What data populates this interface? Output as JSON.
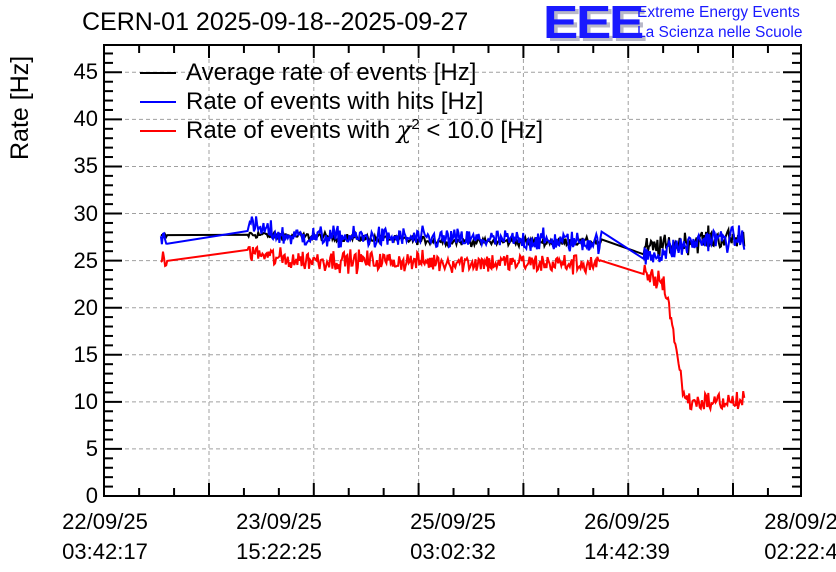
{
  "chart_data": {
    "type": "line",
    "title": "CERN-01 2025-09-18--2025-09-27",
    "xlabel": "",
    "ylabel": "Rate [Hz]",
    "ylim": [
      0,
      47.9
    ],
    "yticks": [
      0,
      5,
      10,
      15,
      20,
      25,
      30,
      35,
      40,
      45
    ],
    "ytick_labels": [
      "0",
      "5",
      "10",
      "15",
      "20",
      "25",
      "30",
      "35",
      "40",
      "45"
    ],
    "xtick_labels": [
      {
        "date": "22/09/25",
        "time": "03:42:17"
      },
      {
        "date": "23/09/25",
        "time": "15:22:25"
      },
      {
        "date": "25/09/25",
        "time": "03:02:32"
      },
      {
        "date": "26/09/25",
        "time": "14:42:39"
      },
      {
        "date": "28/09/2",
        "time": "02:22:4"
      }
    ],
    "x_units": "hours since 22/09/25 03:42:17",
    "xlim": [
      0,
      144.67
    ],
    "grid": true,
    "legend_position": "top-left",
    "series": [
      {
        "name": "Average rate of events [Hz]",
        "color": "#000000",
        "segments": [
          {
            "t_start": 11.8,
            "t_end": 13.2,
            "mean": 27.6,
            "noise": 0.2
          },
          {
            "t_start": 29.8,
            "t_end": 103.3,
            "mean": 27.8,
            "noise": 0.3,
            "end_mean": 27.0
          },
          {
            "t_start": 112.0,
            "t_end": 133.1,
            "mean": 26.2,
            "noise": 0.8,
            "end_mean": 27.3
          }
        ]
      },
      {
        "name": "Rate of events with hits [Hz]",
        "color": "#0000ff",
        "segments": [
          {
            "t_start": 11.8,
            "t_end": 13.2,
            "mean": 27.6,
            "noise": 0.8
          },
          {
            "t_start": 29.8,
            "t_end": 103.3,
            "mean": 27.6,
            "noise": 0.8,
            "start_mean": 28.8,
            "end_mean": 27.0
          },
          {
            "t_start": 112.0,
            "t_end": 133.1,
            "mean": 25.3,
            "noise": 0.9,
            "end_mean": 27.3
          }
        ]
      },
      {
        "name": "Rate of events with χ² < 10.0 [Hz]",
        "color": "#ff0000",
        "segments": [
          {
            "t_start": 11.8,
            "t_end": 13.2,
            "mean": 24.9,
            "noise": 0.8
          },
          {
            "t_start": 29.8,
            "t_end": 103.3,
            "mean": 25.1,
            "noise": 0.8,
            "start_mean": 26.0,
            "end_mean": 24.6
          },
          {
            "t_start": 112.0,
            "t_end": 133.1,
            "mean": 23.5,
            "noise": 0.8,
            "drop_start": 115.5,
            "drop_end": 121.5,
            "end_mean": 10.0
          }
        ]
      }
    ]
  },
  "header": {
    "logo_mark": "EEE",
    "logo_line1": "Extreme Energy Events",
    "logo_line2": "La Scienza nelle Scuole"
  },
  "legend": [
    {
      "label": "Average rate of events [Hz]",
      "color": "#000000"
    },
    {
      "label": "Rate of events with hits [Hz]",
      "color": "#0000ff"
    },
    {
      "label_prefix": "Rate of events with ",
      "label_chi": "χ",
      "label_sup": "2",
      "label_suffix": " < 10.0 [Hz]",
      "color": "#ff0000"
    }
  ]
}
